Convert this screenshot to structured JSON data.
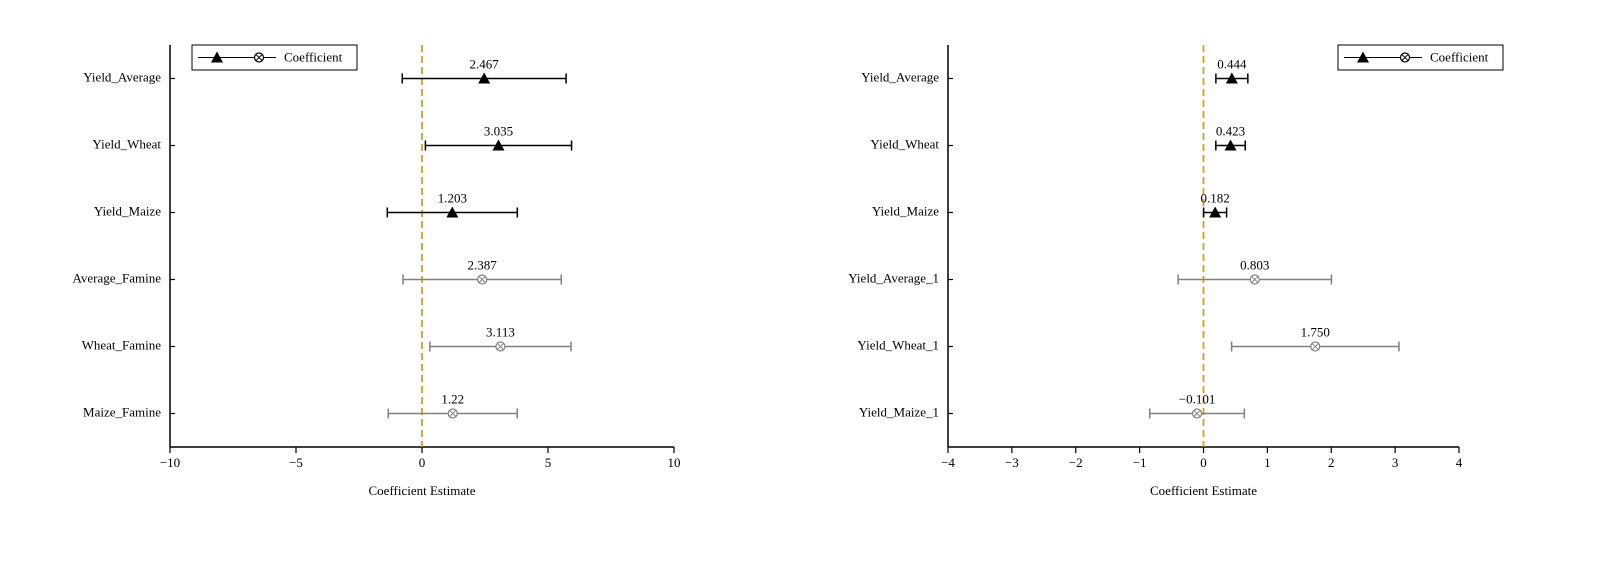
{
  "chart_data": [
    {
      "type": "errorbar",
      "xlabel": "Coefficient Estimate",
      "categories": [
        "Yield_Average",
        "Yield_Wheat",
        "Yield_Maize",
        "Average_Famine",
        "Wheat_Famine",
        "Maize_Famine"
      ],
      "series": [
        {
          "name": "Coefficient",
          "values": [
            2.467,
            3.035,
            1.203,
            2.387,
            3.113,
            1.22
          ],
          "errors": [
            3.25,
            2.9,
            2.58,
            3.14,
            2.8,
            2.56
          ],
          "colors": [
            "#000000",
            "#000000",
            "#000000",
            "#808080",
            "#808080",
            "#808080"
          ],
          "markers": [
            "triangle",
            "triangle",
            "triangle",
            "circle-x",
            "circle-x",
            "circle-x"
          ]
        }
      ],
      "xlim": [
        -10,
        10
      ],
      "xticks": [
        {
          "value": -10,
          "label": "−10"
        },
        {
          "value": -5,
          "label": "−5"
        },
        0,
        5,
        10
      ],
      "refline": {
        "value": 0,
        "color": "#d4a017"
      },
      "legend": "upper left"
    },
    {
      "type": "errorbar",
      "xlabel": "Coefficient Estimate",
      "categories": [
        "Yield_Average",
        "Yield_Wheat",
        "Yield_Maize",
        "Yield_Average_1",
        "Yield_Wheat_1",
        "Yield_Maize_1"
      ],
      "series": [
        {
          "name": "Coefficient",
          "values": [
            0.444,
            0.423,
            0.182,
            0.803,
            1.75,
            -0.101
          ],
          "value_labels": [
            "0.444",
            "0.423",
            "0.182",
            "0.803",
            "1.750",
            "−0.101"
          ],
          "errors": [
            0.25,
            0.23,
            0.18,
            1.2,
            1.31,
            0.74
          ],
          "colors": [
            "#000000",
            "#000000",
            "#000000",
            "#808080",
            "#808080",
            "#808080"
          ],
          "markers": [
            "triangle",
            "triangle",
            "triangle",
            "circle-x",
            "circle-x",
            "circle-x"
          ]
        }
      ],
      "xlim": [
        -4,
        4
      ],
      "xticks": [
        {
          "value": -4,
          "label": "−4"
        },
        {
          "value": -3,
          "label": "−3"
        },
        {
          "value": -2,
          "label": "−2"
        },
        {
          "value": -1,
          "label": "−1"
        },
        0,
        1,
        2,
        3,
        4
      ],
      "refline": {
        "value": 0,
        "color": "#d4a017"
      },
      "legend": "upper right"
    }
  ]
}
